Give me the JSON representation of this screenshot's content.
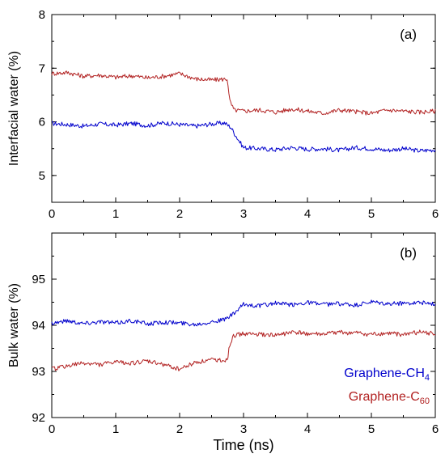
{
  "chart_data": [
    {
      "type": "line",
      "panel_label": "(a)",
      "xlabel": "",
      "ylabel": "Interfacial water (%)",
      "xlim": [
        0,
        6
      ],
      "ylim": [
        4.5,
        8
      ],
      "x_ticks": [
        "0",
        "1",
        "2",
        "3",
        "4",
        "5",
        "6"
      ],
      "y_ticks": [
        "5",
        "6",
        "7",
        "8"
      ],
      "legend": false,
      "series": [
        {
          "color": "#0000cc",
          "x": [
            0,
            0.25,
            0.5,
            0.75,
            1.0,
            1.25,
            1.5,
            1.75,
            2.0,
            2.25,
            2.5,
            2.7,
            2.8,
            2.9,
            3.0,
            3.25,
            3.5,
            3.75,
            4.0,
            4.25,
            4.5,
            4.75,
            5.0,
            5.25,
            5.5,
            5.75,
            6.0
          ],
          "y": [
            5.97,
            5.95,
            5.92,
            5.96,
            5.94,
            5.97,
            5.93,
            5.98,
            5.95,
            5.92,
            5.96,
            5.98,
            5.9,
            5.7,
            5.52,
            5.5,
            5.48,
            5.52,
            5.49,
            5.5,
            5.47,
            5.52,
            5.5,
            5.47,
            5.5,
            5.46,
            5.48
          ]
        },
        {
          "color": "#b22222",
          "x": [
            0,
            0.25,
            0.5,
            0.75,
            1.0,
            1.25,
            1.5,
            1.75,
            2.0,
            2.25,
            2.5,
            2.75,
            2.78,
            2.85,
            3.0,
            3.25,
            3.5,
            3.75,
            4.0,
            4.25,
            4.5,
            4.75,
            5.0,
            5.25,
            5.5,
            5.75,
            6.0
          ],
          "y": [
            6.9,
            6.92,
            6.85,
            6.87,
            6.83,
            6.86,
            6.82,
            6.85,
            6.9,
            6.8,
            6.78,
            6.8,
            6.4,
            6.22,
            6.2,
            6.22,
            6.18,
            6.24,
            6.2,
            6.16,
            6.22,
            6.19,
            6.16,
            6.22,
            6.2,
            6.18,
            6.2
          ]
        }
      ]
    },
    {
      "type": "line",
      "panel_label": "(b)",
      "xlabel": "Time (ns)",
      "ylabel": "Bulk water (%)",
      "xlim": [
        0,
        6
      ],
      "ylim": [
        92,
        96
      ],
      "x_ticks": [
        "0",
        "1",
        "2",
        "3",
        "4",
        "5",
        "6"
      ],
      "y_ticks": [
        "92",
        "93",
        "94",
        "95"
      ],
      "legend": true,
      "legend_position": "lower-right",
      "series": [
        {
          "name": "Graphene-CH",
          "name_sub": "4",
          "color": "#0000cc",
          "x": [
            0,
            0.25,
            0.5,
            0.75,
            1.0,
            1.25,
            1.5,
            1.75,
            2.0,
            2.25,
            2.5,
            2.7,
            2.85,
            3.0,
            3.25,
            3.5,
            3.75,
            4.0,
            4.25,
            4.5,
            4.75,
            5.0,
            5.25,
            5.5,
            5.75,
            6.0
          ],
          "y": [
            94.05,
            94.1,
            94.04,
            94.08,
            94.05,
            94.1,
            94.03,
            94.07,
            94.05,
            94.02,
            94.08,
            94.12,
            94.25,
            94.45,
            94.42,
            94.48,
            94.44,
            94.5,
            94.45,
            94.47,
            94.43,
            94.5,
            94.46,
            94.48,
            94.5,
            94.45
          ]
        },
        {
          "name": "Graphene-C",
          "name_sub": "60",
          "color": "#b22222",
          "x": [
            0,
            0.25,
            0.5,
            0.75,
            1.0,
            1.25,
            1.5,
            1.75,
            2.0,
            2.25,
            2.5,
            2.75,
            2.78,
            2.85,
            3.0,
            3.25,
            3.5,
            3.75,
            4.0,
            4.25,
            4.5,
            4.75,
            5.0,
            5.25,
            5.5,
            5.75,
            6.0
          ],
          "y": [
            93.05,
            93.12,
            93.18,
            93.15,
            93.2,
            93.18,
            93.22,
            93.15,
            93.05,
            93.2,
            93.25,
            93.25,
            93.55,
            93.78,
            93.82,
            93.8,
            93.78,
            93.85,
            93.82,
            93.8,
            93.85,
            93.83,
            93.8,
            93.82,
            93.8,
            93.85,
            93.82
          ]
        }
      ]
    }
  ]
}
